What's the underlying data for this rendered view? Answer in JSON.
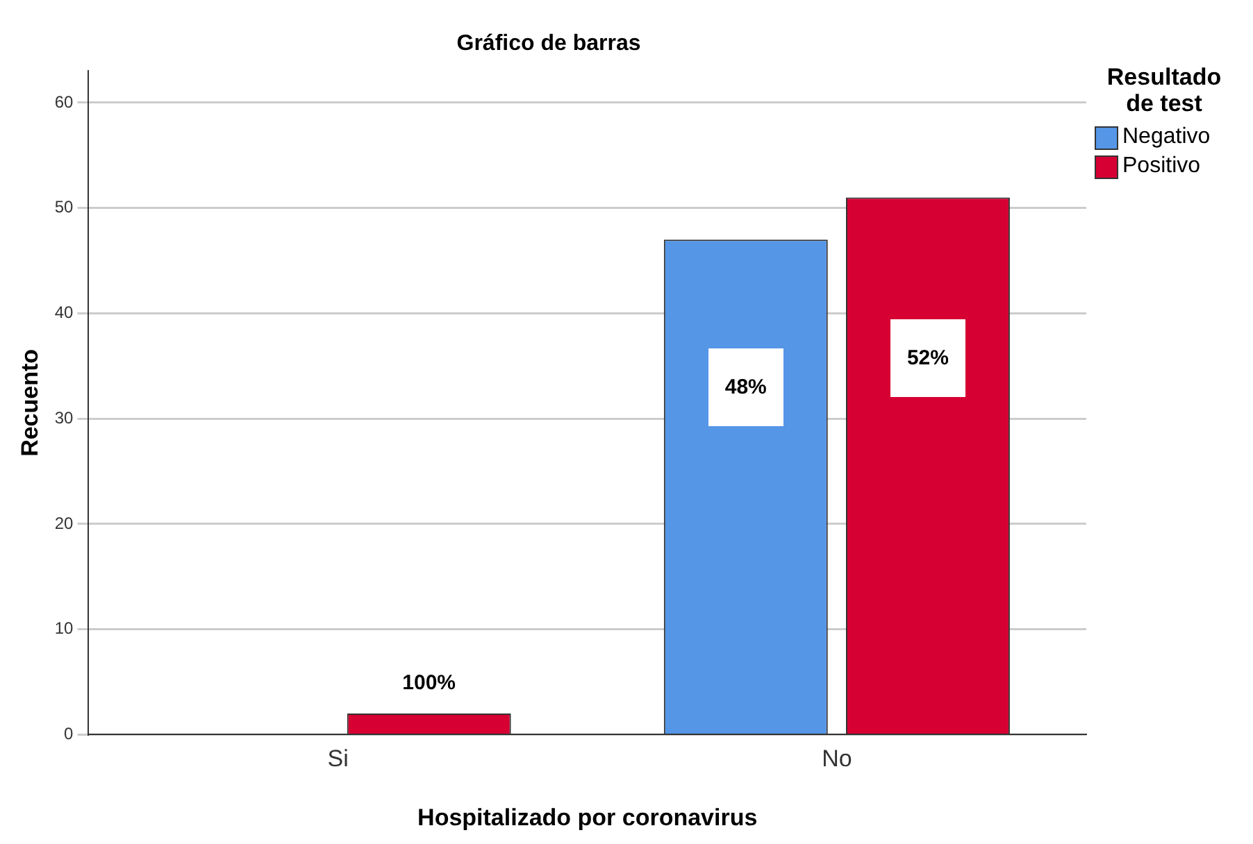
{
  "chart_data": {
    "type": "bar",
    "title": "Gráfico de barras",
    "xlabel": "Hospitalizado por coronavirus",
    "ylabel": "Recuento",
    "legend_title": "Resultado de test",
    "legend": "top right",
    "grid": "y",
    "categories": [
      "Si",
      "No"
    ],
    "series": [
      {
        "name": "Negativo",
        "color": "#5596e6",
        "values": [
          null,
          47
        ]
      },
      {
        "name": "Positivo",
        "color": "#d60032",
        "values": [
          2,
          51
        ]
      }
    ],
    "annotations": [
      "100%",
      "48%",
      "52%"
    ],
    "ylim": [
      0,
      63
    ],
    "yticks": [
      0,
      10,
      20,
      30,
      40,
      50,
      60
    ]
  }
}
